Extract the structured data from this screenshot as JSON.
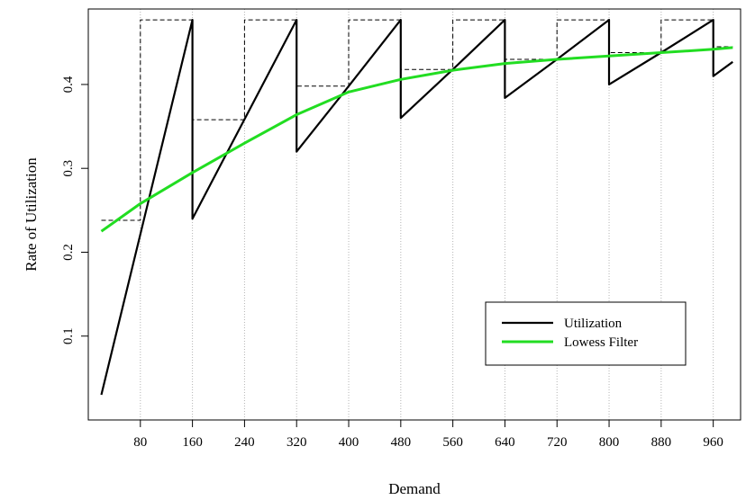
{
  "chart_data": {
    "type": "line",
    "title": "",
    "xlabel": "Demand",
    "ylabel": "Rate of Utilization",
    "xlim": [
      0,
      1002
    ],
    "ylim": [
      0.0,
      0.49
    ],
    "x_ticks": [
      80,
      160,
      240,
      320,
      400,
      480,
      560,
      640,
      720,
      800,
      880,
      960
    ],
    "y_ticks": [
      0.1,
      0.2,
      0.3,
      0.4
    ],
    "vertical_dotted_gridlines": [
      80,
      160,
      240,
      320,
      400,
      480,
      560,
      640,
      720,
      800,
      880,
      960
    ],
    "colors": {
      "utilization": "#000000",
      "lowess": "#22dd22",
      "dashed": "#000000",
      "grid": "#b4b4b4"
    },
    "series": [
      {
        "name": "Utilization",
        "style": "solid",
        "color": "#000000",
        "points": [
          [
            20,
            0.03
          ],
          [
            160,
            0.477
          ],
          [
            160,
            0.24
          ],
          [
            320,
            0.477
          ],
          [
            320,
            0.32
          ],
          [
            400,
            0.398
          ],
          [
            480,
            0.477
          ],
          [
            480,
            0.36
          ],
          [
            560,
            0.418
          ],
          [
            640,
            0.477
          ],
          [
            640,
            0.384
          ],
          [
            720,
            0.43
          ],
          [
            800,
            0.477
          ],
          [
            800,
            0.4
          ],
          [
            880,
            0.438
          ],
          [
            960,
            0.477
          ],
          [
            960,
            0.41
          ],
          [
            990,
            0.427
          ]
        ]
      },
      {
        "name": "",
        "style": "dashed",
        "color": "#000000",
        "points": [
          [
            20,
            0.238
          ],
          [
            80,
            0.238
          ],
          [
            80,
            0.477
          ],
          [
            160,
            0.477
          ],
          [
            160,
            0.358
          ],
          [
            240,
            0.358
          ],
          [
            240,
            0.477
          ],
          [
            320,
            0.477
          ],
          [
            320,
            0.398
          ],
          [
            400,
            0.398
          ],
          [
            400,
            0.477
          ],
          [
            480,
            0.477
          ],
          [
            480,
            0.418
          ],
          [
            560,
            0.418
          ],
          [
            560,
            0.477
          ],
          [
            640,
            0.477
          ],
          [
            640,
            0.43
          ],
          [
            720,
            0.43
          ],
          [
            720,
            0.477
          ],
          [
            800,
            0.477
          ],
          [
            800,
            0.438
          ],
          [
            880,
            0.438
          ],
          [
            880,
            0.477
          ],
          [
            960,
            0.477
          ],
          [
            960,
            0.445
          ],
          [
            990,
            0.445
          ]
        ]
      },
      {
        "name": "Lowess Filter",
        "style": "solid",
        "color": "#22dd22",
        "points": [
          [
            20,
            0.225
          ],
          [
            80,
            0.258
          ],
          [
            160,
            0.295
          ],
          [
            240,
            0.33
          ],
          [
            320,
            0.364
          ],
          [
            400,
            0.391
          ],
          [
            480,
            0.406
          ],
          [
            560,
            0.417
          ],
          [
            640,
            0.425
          ],
          [
            720,
            0.43
          ],
          [
            800,
            0.434
          ],
          [
            880,
            0.438
          ],
          [
            960,
            0.442
          ],
          [
            990,
            0.444
          ]
        ]
      }
    ],
    "legend": {
      "placement": "bottom-right",
      "entries": [
        {
          "label": "Utilization",
          "color": "#000000"
        },
        {
          "label": "Lowess Filter",
          "color": "#22dd22"
        }
      ]
    }
  }
}
